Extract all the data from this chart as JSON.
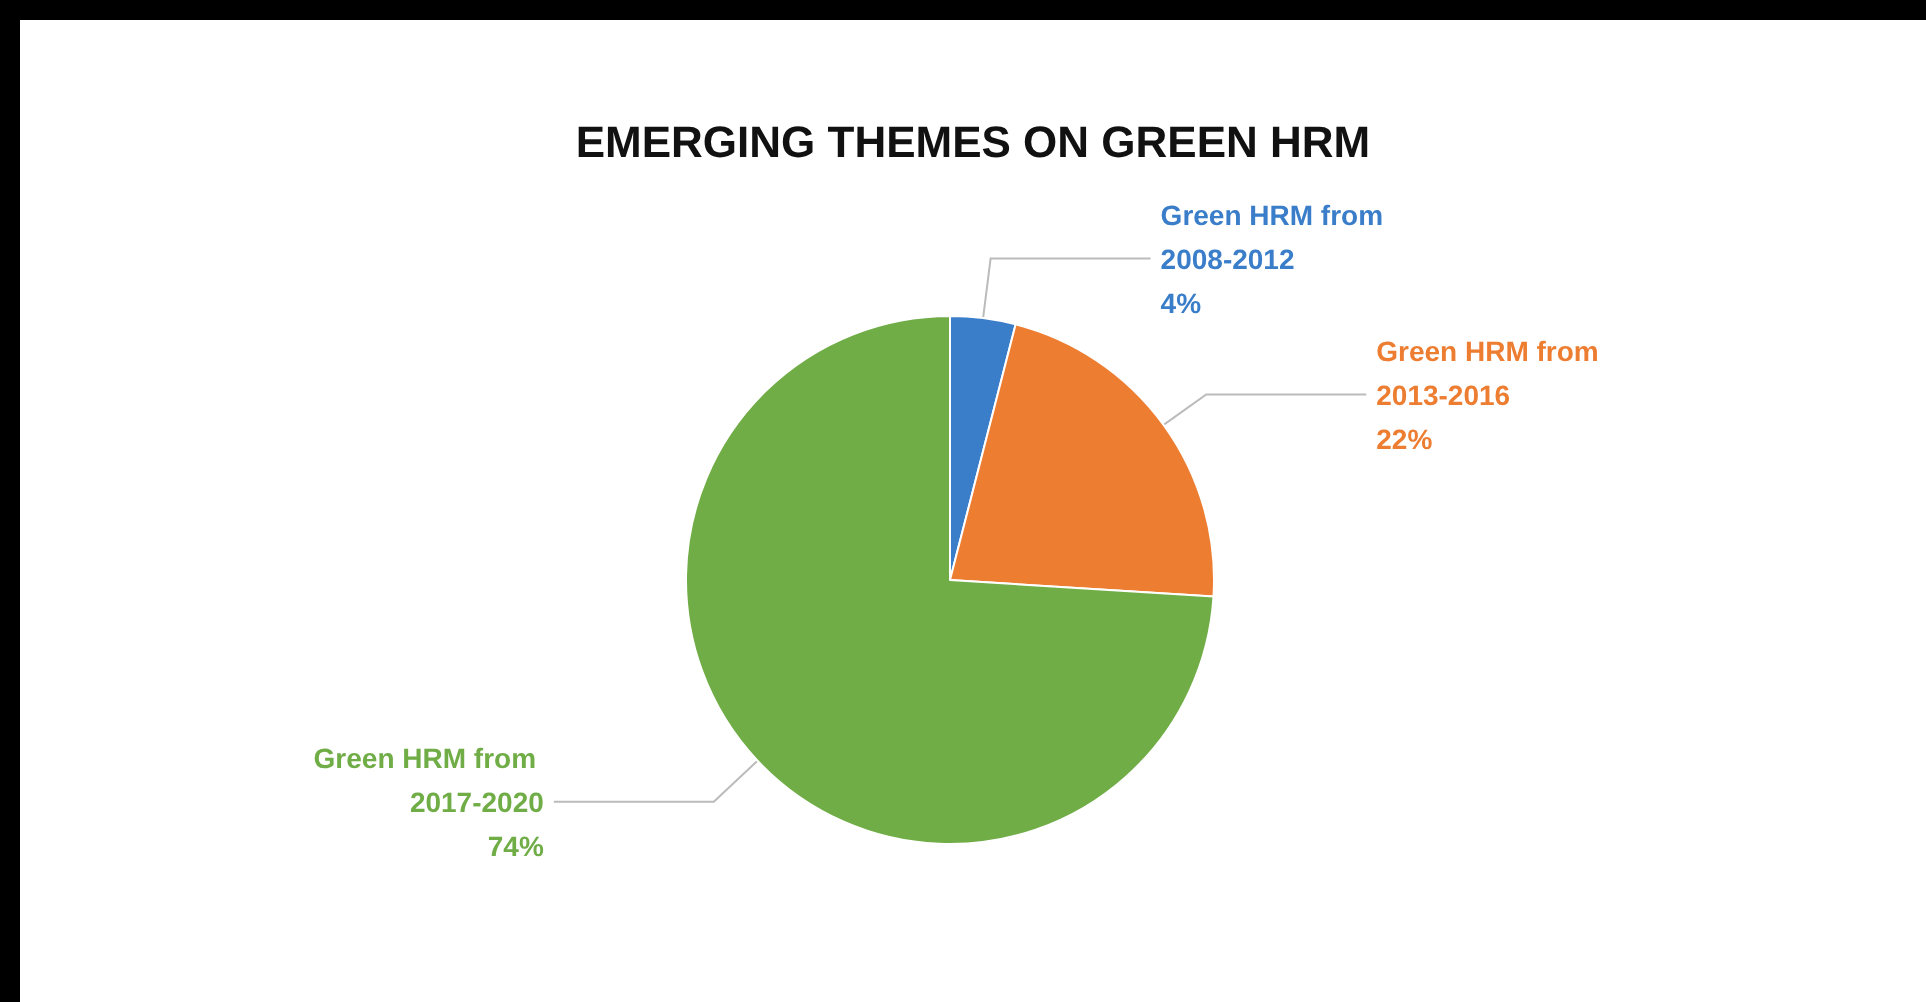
{
  "chart_data": {
    "type": "pie",
    "title": "EMERGING THEMES ON GREEN HRM",
    "categories": [
      "Green HRM from 2008-2012",
      "Green HRM from 2013-2016",
      "Green HRM from 2017-2020"
    ],
    "values": [
      4,
      22,
      74
    ],
    "colors": [
      "#3a7dc9",
      "#ed7d31",
      "#70ad47"
    ],
    "value_labels": [
      "4%",
      "22%",
      "74%"
    ],
    "legend": false
  }
}
